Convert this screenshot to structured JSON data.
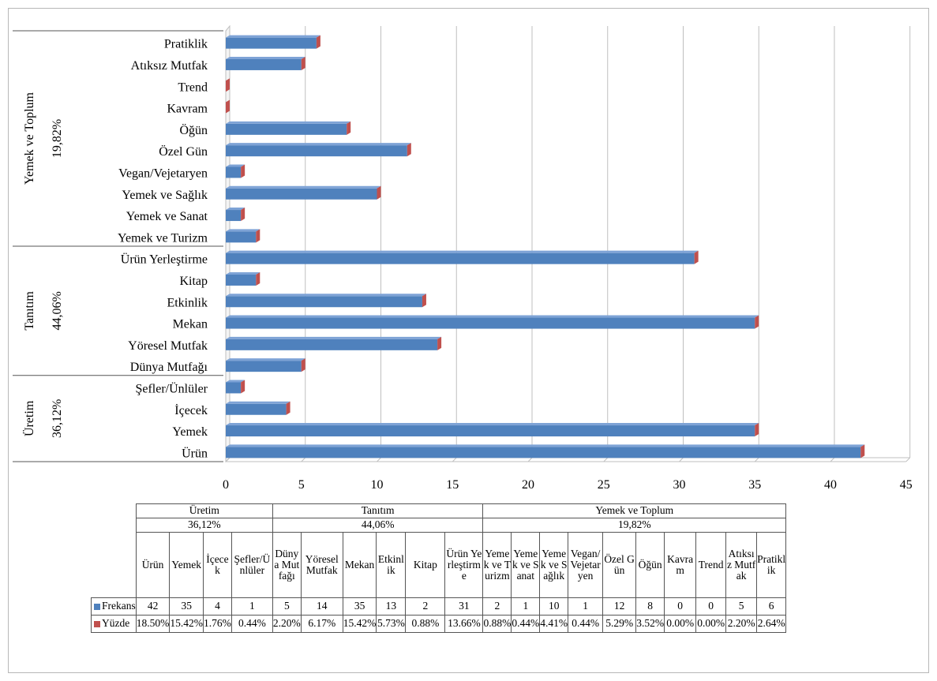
{
  "chart_data": {
    "type": "bar",
    "orientation": "horizontal",
    "x_ticks": [
      "0",
      "5",
      "10",
      "15",
      "20",
      "25",
      "30",
      "35",
      "40",
      "45"
    ],
    "xlim": [
      0,
      45
    ],
    "grid": true,
    "groups": [
      {
        "name": "Yemek ve Toplum",
        "percent": "19,82%"
      },
      {
        "name": "Tanıtım",
        "percent": "44,06%"
      },
      {
        "name": "Üretim",
        "percent": "36,12%"
      }
    ],
    "categories_top_to_bottom": [
      "Pratiklik",
      "Atıksız Mutfak",
      "Trend",
      "Kavram",
      "Öğün",
      "Özel Gün",
      "Vegan/Vejetaryen",
      "Yemek ve Sağlık",
      "Yemek ve Sanat",
      "Yemek ve Turizm",
      "Ürün Yerleştirme",
      "Kitap",
      "Etkinlik",
      "Mekan",
      "Yöresel Mutfak",
      "Dünya Mutfağı",
      "Şefler/Ünlüler",
      "İçecek",
      "Yemek",
      "Ürün"
    ],
    "values_top_to_bottom": [
      6,
      5,
      0,
      0,
      8,
      12,
      1,
      10,
      1,
      2,
      31,
      2,
      13,
      35,
      14,
      5,
      1,
      4,
      35,
      42
    ],
    "colors": {
      "frekans": "#4f81bd",
      "frekans_dark": "#2e5a8e",
      "yuzde": "#c0504d"
    }
  },
  "table": {
    "groups": [
      {
        "name": "Üretim",
        "percent": "36,12%",
        "span": 4
      },
      {
        "name": "Tanıtım",
        "percent": "44,06%",
        "span": 6
      },
      {
        "name": "Yemek ve Toplum",
        "percent": "19,82%",
        "span": 10
      }
    ],
    "categories": [
      "Ürün",
      "Yemek",
      "İçecek",
      "Şefler/Ünlüler",
      "Dünya Mutfağı",
      "Yöresel Mutfak",
      "Mekan",
      "Etkinlik",
      "Kitap",
      "Ürün Yerleştirme",
      "Yemek ve Turizm",
      "Yemek ve Sanat",
      "Yemek ve Sağlık",
      "Vegan/Vejetaryen",
      "Özel Gün",
      "Öğün",
      "Kavram",
      "Trend",
      "Atıksız Mutfak",
      "Pratiklik"
    ],
    "series": [
      {
        "name": "Frekans",
        "color": "#4f81bd",
        "values": [
          "42",
          "35",
          "4",
          "1",
          "5",
          "14",
          "35",
          "13",
          "2",
          "31",
          "2",
          "1",
          "10",
          "1",
          "12",
          "8",
          "0",
          "0",
          "5",
          "6"
        ]
      },
      {
        "name": "Yüzde",
        "color": "#c0504d",
        "values": [
          "18.50%",
          "15.42%",
          "1.76%",
          "0.44%",
          "2.20%",
          "6.17%",
          "15.42%",
          "5.73%",
          "0.88%",
          "13.66%",
          "0.88%",
          "0.44%",
          "4.41%",
          "0.44%",
          "5.29%",
          "3.52%",
          "0.00%",
          "0.00%",
          "2.20%",
          "2.64%"
        ]
      }
    ]
  }
}
